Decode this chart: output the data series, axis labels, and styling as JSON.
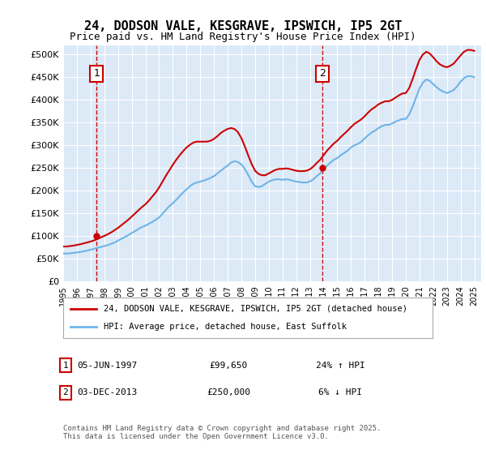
{
  "title": "24, DODSON VALE, KESGRAVE, IPSWICH, IP5 2GT",
  "subtitle": "Price paid vs. HM Land Registry's House Price Index (HPI)",
  "ylabel_ticks": [
    "£0",
    "£50K",
    "£100K",
    "£150K",
    "£200K",
    "£250K",
    "£300K",
    "£350K",
    "£400K",
    "£450K",
    "£500K"
  ],
  "ytick_values": [
    0,
    50000,
    100000,
    150000,
    200000,
    250000,
    300000,
    350000,
    400000,
    450000,
    500000
  ],
  "ylim": [
    0,
    520000
  ],
  "xlim_start": 1995.0,
  "xlim_end": 2025.5,
  "xtick_years": [
    1995,
    1996,
    1997,
    1998,
    1999,
    2000,
    2001,
    2002,
    2003,
    2004,
    2005,
    2006,
    2007,
    2008,
    2009,
    2010,
    2011,
    2012,
    2013,
    2014,
    2015,
    2016,
    2017,
    2018,
    2019,
    2020,
    2021,
    2022,
    2023,
    2024,
    2025
  ],
  "hpi_color": "#6eb4e8",
  "price_color": "#cc0000",
  "dashed_line_color": "#cc0000",
  "background_color": "#dce9f7",
  "legend_border_color": "#aaaaaa",
  "annotation_box_color": "#cc0000",
  "sale1_year": 1997.43,
  "sale1_price": 99650,
  "sale1_label": "1",
  "sale1_date": "05-JUN-1997",
  "sale1_pct": "24%",
  "sale1_dir": "↑",
  "sale2_year": 2013.92,
  "sale2_price": 250000,
  "sale2_label": "2",
  "sale2_date": "03-DEC-2013",
  "sale2_pct": "6%",
  "sale2_dir": "↓",
  "legend1": "24, DODSON VALE, KESGRAVE, IPSWICH, IP5 2GT (detached house)",
  "legend2": "HPI: Average price, detached house, East Suffolk",
  "footer": "Contains HM Land Registry data © Crown copyright and database right 2025.\nThis data is licensed under the Open Government Licence v3.0.",
  "table_row1": [
    "1",
    "05-JUN-1997",
    "£99,650",
    "24% ↑ HPI"
  ],
  "table_row2": [
    "2",
    "03-DEC-2013",
    "£250,000",
    "6% ↓ HPI"
  ],
  "hpi_data_x": [
    1995.0,
    1995.25,
    1995.5,
    1995.75,
    1996.0,
    1996.25,
    1996.5,
    1996.75,
    1997.0,
    1997.25,
    1997.5,
    1997.75,
    1998.0,
    1998.25,
    1998.5,
    1998.75,
    1999.0,
    1999.25,
    1999.5,
    1999.75,
    2000.0,
    2000.25,
    2000.5,
    2000.75,
    2001.0,
    2001.25,
    2001.5,
    2001.75,
    2002.0,
    2002.25,
    2002.5,
    2002.75,
    2003.0,
    2003.25,
    2003.5,
    2003.75,
    2004.0,
    2004.25,
    2004.5,
    2004.75,
    2005.0,
    2005.25,
    2005.5,
    2005.75,
    2006.0,
    2006.25,
    2006.5,
    2006.75,
    2007.0,
    2007.25,
    2007.5,
    2007.75,
    2008.0,
    2008.25,
    2008.5,
    2008.75,
    2009.0,
    2009.25,
    2009.5,
    2009.75,
    2010.0,
    2010.25,
    2010.5,
    2010.75,
    2011.0,
    2011.25,
    2011.5,
    2011.75,
    2012.0,
    2012.25,
    2012.5,
    2012.75,
    2013.0,
    2013.25,
    2013.5,
    2013.75,
    2014.0,
    2014.25,
    2014.5,
    2014.75,
    2015.0,
    2015.25,
    2015.5,
    2015.75,
    2016.0,
    2016.25,
    2016.5,
    2016.75,
    2017.0,
    2017.25,
    2017.5,
    2017.75,
    2018.0,
    2018.25,
    2018.5,
    2018.75,
    2019.0,
    2019.25,
    2019.5,
    2019.75,
    2020.0,
    2020.25,
    2020.5,
    2020.75,
    2021.0,
    2021.25,
    2021.5,
    2021.75,
    2022.0,
    2022.25,
    2022.5,
    2022.75,
    2023.0,
    2023.25,
    2023.5,
    2023.75,
    2024.0,
    2024.25,
    2024.5,
    2024.75,
    2025.0
  ],
  "hpi_data_y": [
    62000,
    61500,
    62000,
    63000,
    64000,
    65000,
    66500,
    68000,
    70000,
    72000,
    74000,
    76000,
    78000,
    80000,
    83000,
    86000,
    90000,
    94000,
    98000,
    102000,
    107000,
    111000,
    116000,
    120000,
    123000,
    127000,
    131000,
    136000,
    141000,
    149000,
    158000,
    166000,
    172000,
    180000,
    188000,
    196000,
    203000,
    210000,
    215000,
    218000,
    220000,
    222000,
    225000,
    228000,
    232000,
    238000,
    244000,
    250000,
    255000,
    262000,
    265000,
    263000,
    258000,
    248000,
    235000,
    220000,
    210000,
    208000,
    210000,
    215000,
    220000,
    223000,
    225000,
    225000,
    224000,
    225000,
    224000,
    222000,
    220000,
    219000,
    218000,
    218000,
    220000,
    225000,
    232000,
    238000,
    248000,
    255000,
    262000,
    268000,
    272000,
    278000,
    283000,
    288000,
    295000,
    300000,
    303000,
    308000,
    315000,
    322000,
    328000,
    332000,
    338000,
    342000,
    345000,
    345000,
    348000,
    352000,
    355000,
    358000,
    358000,
    368000,
    385000,
    405000,
    425000,
    438000,
    445000,
    442000,
    435000,
    428000,
    422000,
    418000,
    415000,
    418000,
    422000,
    430000,
    440000,
    448000,
    452000,
    452000,
    450000
  ],
  "price_data_x": [
    1995.0,
    1995.25,
    1995.5,
    1995.75,
    1996.0,
    1996.25,
    1996.5,
    1996.75,
    1997.0,
    1997.25,
    1997.5,
    1997.75,
    1998.0,
    1998.25,
    1998.5,
    1998.75,
    1999.0,
    1999.25,
    1999.5,
    1999.75,
    2000.0,
    2000.25,
    2000.5,
    2000.75,
    2001.0,
    2001.25,
    2001.5,
    2001.75,
    2002.0,
    2002.25,
    2002.5,
    2002.75,
    2003.0,
    2003.25,
    2003.5,
    2003.75,
    2004.0,
    2004.25,
    2004.5,
    2004.75,
    2005.0,
    2005.25,
    2005.5,
    2005.75,
    2006.0,
    2006.25,
    2006.5,
    2006.75,
    2007.0,
    2007.25,
    2007.5,
    2007.75,
    2008.0,
    2008.25,
    2008.5,
    2008.75,
    2009.0,
    2009.25,
    2009.5,
    2009.75,
    2010.0,
    2010.25,
    2010.5,
    2010.75,
    2011.0,
    2011.25,
    2011.5,
    2011.75,
    2012.0,
    2012.25,
    2012.5,
    2012.75,
    2013.0,
    2013.25,
    2013.5,
    2013.75,
    2014.0,
    2014.25,
    2014.5,
    2014.75,
    2015.0,
    2015.25,
    2015.5,
    2015.75,
    2016.0,
    2016.25,
    2016.5,
    2016.75,
    2017.0,
    2017.25,
    2017.5,
    2017.75,
    2018.0,
    2018.25,
    2018.5,
    2018.75,
    2019.0,
    2019.25,
    2019.5,
    2019.75,
    2020.0,
    2020.25,
    2020.5,
    2020.75,
    2021.0,
    2021.25,
    2021.5,
    2021.75,
    2022.0,
    2022.25,
    2022.5,
    2022.75,
    2023.0,
    2023.25,
    2023.5,
    2023.75,
    2024.0,
    2024.25,
    2024.5,
    2024.75,
    2025.0
  ],
  "price_data_y": [
    77000,
    77000,
    78000,
    79000,
    80500,
    82000,
    84000,
    86000,
    88000,
    90500,
    93500,
    97000,
    100500,
    104000,
    108000,
    113000,
    118000,
    124000,
    130000,
    136000,
    143000,
    150000,
    157000,
    164000,
    170000,
    178000,
    187000,
    196000,
    207000,
    220000,
    233000,
    245000,
    257000,
    268000,
    278000,
    287000,
    295000,
    301000,
    306000,
    308000,
    308000,
    308000,
    308000,
    310000,
    314000,
    320000,
    327000,
    332000,
    336000,
    338000,
    336000,
    329000,
    316000,
    298000,
    278000,
    259000,
    244000,
    237000,
    234000,
    234000,
    238000,
    242000,
    246000,
    248000,
    248000,
    249000,
    248000,
    246000,
    244000,
    243000,
    243000,
    244000,
    247000,
    253000,
    261000,
    268000,
    278000,
    288000,
    296000,
    304000,
    310000,
    318000,
    325000,
    332000,
    340000,
    347000,
    352000,
    357000,
    364000,
    372000,
    379000,
    384000,
    390000,
    394000,
    397000,
    397000,
    400000,
    405000,
    410000,
    414000,
    415000,
    426000,
    446000,
    468000,
    488000,
    500000,
    506000,
    502000,
    494000,
    485000,
    478000,
    474000,
    472000,
    475000,
    480000,
    489000,
    498000,
    506000,
    510000,
    510000,
    508000
  ]
}
